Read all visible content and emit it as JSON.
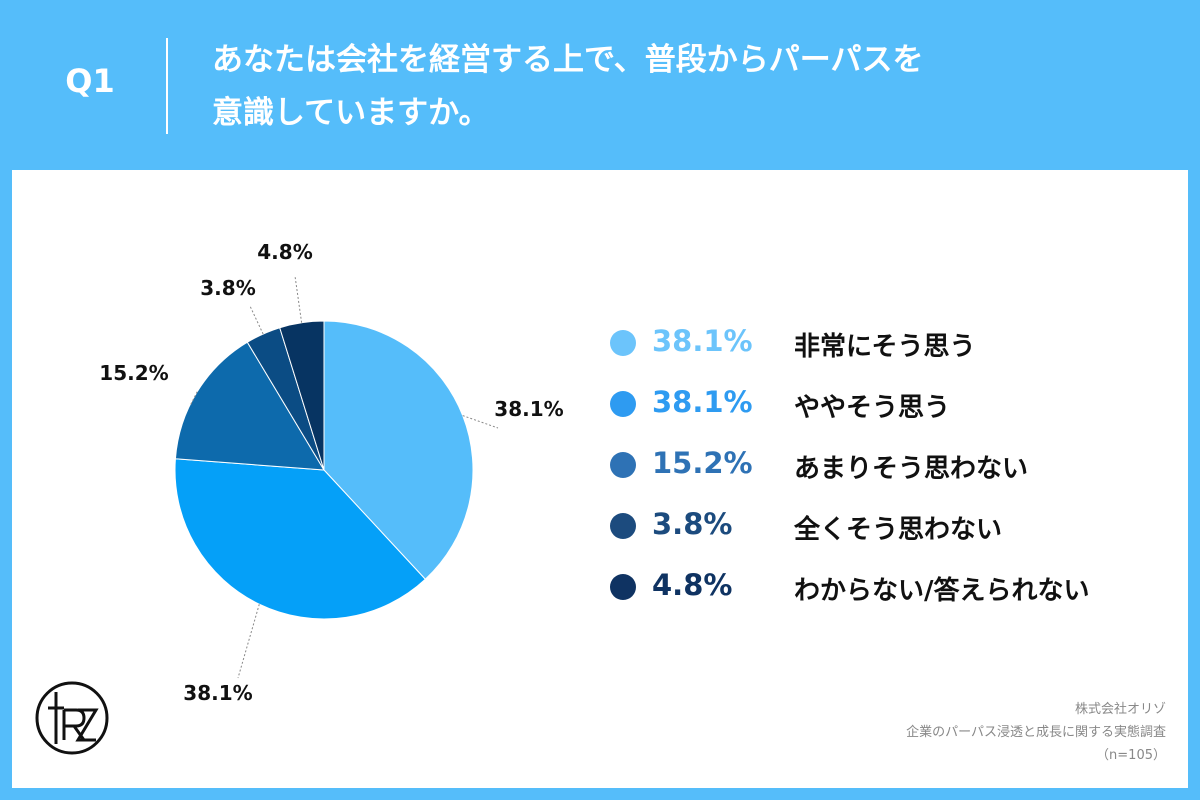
{
  "question": {
    "number": "Q1",
    "line1": "あなたは会社を経営する上で、普段からパーパスを",
    "line2": "意識していますか。"
  },
  "chart_data": {
    "type": "pie",
    "slices": [
      {
        "label": "非常にそう思う",
        "value": 38.1,
        "value_label": "38.1%",
        "color": "#55bdfa",
        "legend_color": "#6cc4fb"
      },
      {
        "label": "ややそう思う",
        "value": 38.1,
        "value_label": "38.1%",
        "color": "#05a0f8",
        "legend_color": "#2e9bf1"
      },
      {
        "label": "あまりそう思わない",
        "value": 15.2,
        "value_label": "15.2%",
        "color": "#0d6aac",
        "legend_color": "#2e72b5"
      },
      {
        "label": "全くそう思わない",
        "value": 3.8,
        "value_label": "3.8%",
        "color": "#0b4c84",
        "legend_color": "#1c4b7e"
      },
      {
        "label": "わからない/答えられない",
        "value": 4.8,
        "value_label": "4.8%",
        "color": "#073462",
        "legend_color": "#0f3362"
      }
    ]
  },
  "legend_items": [
    {
      "pct": "38.1%",
      "label": "非常にそう思う",
      "color": "#6cc4fb"
    },
    {
      "pct": "38.1%",
      "label": "ややそう思う",
      "color": "#2e9bf1"
    },
    {
      "pct": "15.2%",
      "label": "あまりそう思わない",
      "color": "#2e72b5"
    },
    {
      "pct": "3.8%",
      "label": "全くそう思わない",
      "color": "#1c4b7e"
    },
    {
      "pct": "4.8%",
      "label": "わからない/答えられない",
      "color": "#0f3362"
    }
  ],
  "source": {
    "company": "株式会社オリゾ",
    "survey": "企業のパーパス浸透と成長に関する実態調査",
    "sample": "（n=105）"
  },
  "logo": {
    "icon": "orizo-logo-icon"
  }
}
